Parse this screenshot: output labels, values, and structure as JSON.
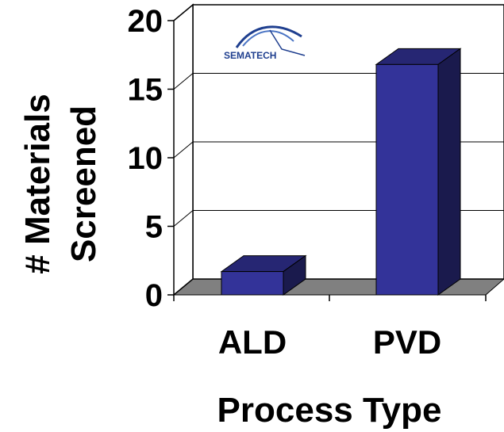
{
  "chart_data": {
    "type": "bar",
    "categories": [
      "ALD",
      "PVD"
    ],
    "values": [
      1.7,
      16.8
    ],
    "xlabel": "Process Type",
    "ylabel": [
      "# Materials",
      "Screened"
    ],
    "ylim": [
      0,
      20
    ],
    "yticks": [
      "0",
      "5",
      "10",
      "15",
      "20"
    ],
    "grid": true,
    "colors": {
      "bar_front": "#333399",
      "bar_top": "#262673",
      "bar_side": "#1a1a4d",
      "floor": "#808080"
    }
  },
  "logo": {
    "text": "SEMATECH",
    "icon": "sematech-logo-icon"
  }
}
